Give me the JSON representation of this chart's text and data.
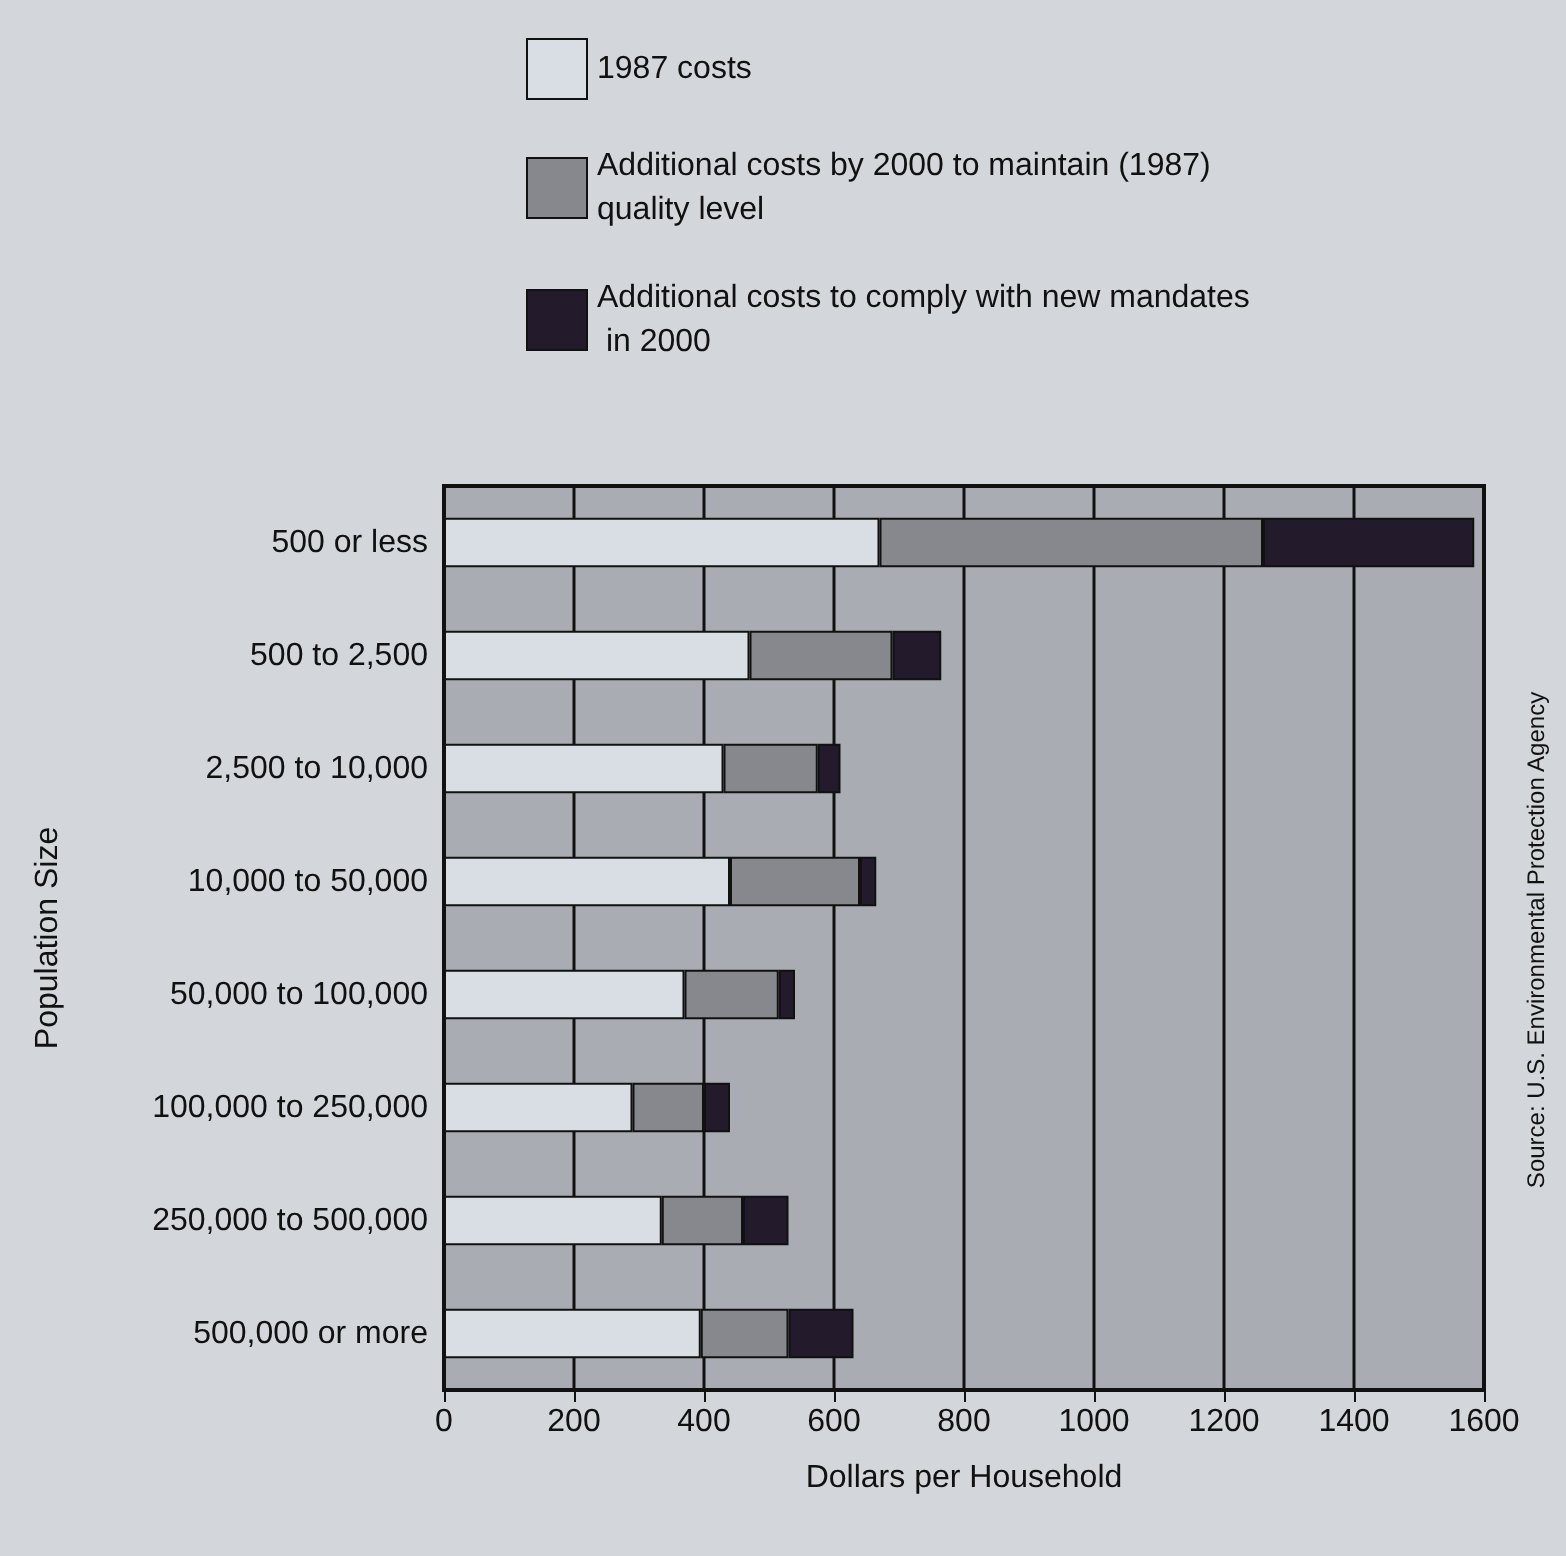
{
  "chart_data": {
    "type": "bar",
    "orientation": "horizontal",
    "stacked": true,
    "xlabel": "Dollars per Household",
    "ylabel": "Population Size",
    "categories": [
      "500 or less",
      "500 to 2,500",
      "2,500 to 10,000",
      "10,000 to 50,000",
      "50,000 to 100,000",
      "100,000 to 250,000",
      "250,000 to 500,000",
      "500,000 or more"
    ],
    "series": [
      {
        "name": "1987 costs",
        "color": "#d9dde4",
        "values": [
          670,
          470,
          430,
          440,
          370,
          290,
          335,
          395
        ]
      },
      {
        "name": "Additional costs by 2000 to maintain (1987) quality level",
        "color": "#86888e",
        "values": [
          590,
          220,
          145,
          200,
          145,
          110,
          125,
          135
        ]
      },
      {
        "name": "Additional costs to comply with new mandates in 2000",
        "color": "#231a2c",
        "values": [
          325,
          75,
          35,
          25,
          25,
          40,
          70,
          100
        ]
      }
    ],
    "xlim": [
      0,
      1600
    ],
    "xticks": [
      0,
      200,
      400,
      600,
      800,
      1000,
      1200,
      1400,
      1600
    ],
    "grid": "x",
    "legend": "top",
    "annotations": [
      "Source: U.S. Environmental Protection Agency"
    ]
  }
}
